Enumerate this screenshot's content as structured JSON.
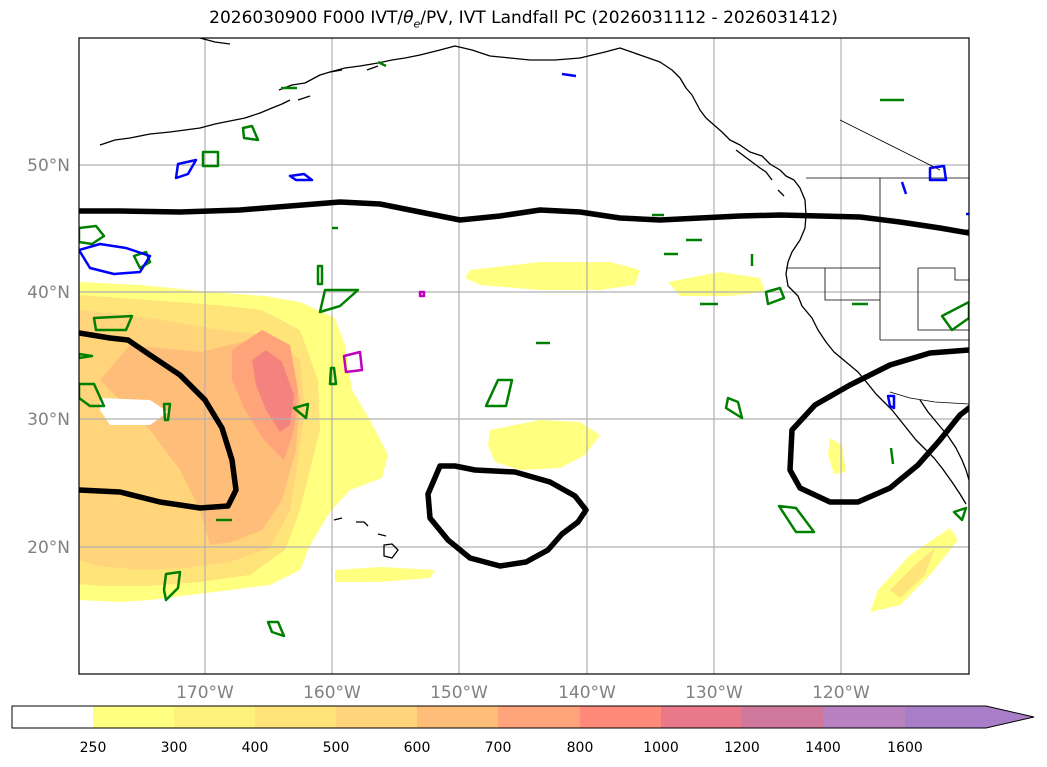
{
  "title": {
    "prefix": "2026030900 F000 IVT/",
    "theta": "θ",
    "theta_sub": "e",
    "suffix": "/PV, IVT Landfall PC (2026031112 - 2026031412)"
  },
  "map": {
    "projection": "PlateCarree",
    "lon_range": [
      -180,
      -110
    ],
    "lat_range": [
      10,
      60
    ],
    "lat_labels": [
      "50°N",
      "40°N",
      "30°N",
      "20°N"
    ],
    "lat_values": [
      50,
      40,
      30,
      20
    ],
    "lon_labels": [
      "170°W",
      "160°W",
      "150°W",
      "140°W",
      "130°W",
      "120°W"
    ],
    "lon_values": [
      -170,
      -160,
      -150,
      -140,
      -130,
      -120
    ],
    "contour_colors": {
      "black": "#000000",
      "green": "#008000",
      "blue": "#0000ff",
      "magenta": "#c000c0"
    }
  },
  "colorbar": {
    "ticks": [
      "250",
      "300",
      "400",
      "500",
      "600",
      "700",
      "800",
      "1000",
      "1200",
      "1400",
      "1600"
    ],
    "colors": [
      "#ffffff",
      "#ffff80",
      "#fff27a",
      "#ffe47a",
      "#ffd47a",
      "#ffbd7a",
      "#ffa47a",
      "#ff8a7a",
      "#e8788a",
      "#d0789c",
      "#b882c0",
      "#a87ec8"
    ],
    "extend": "max"
  }
}
